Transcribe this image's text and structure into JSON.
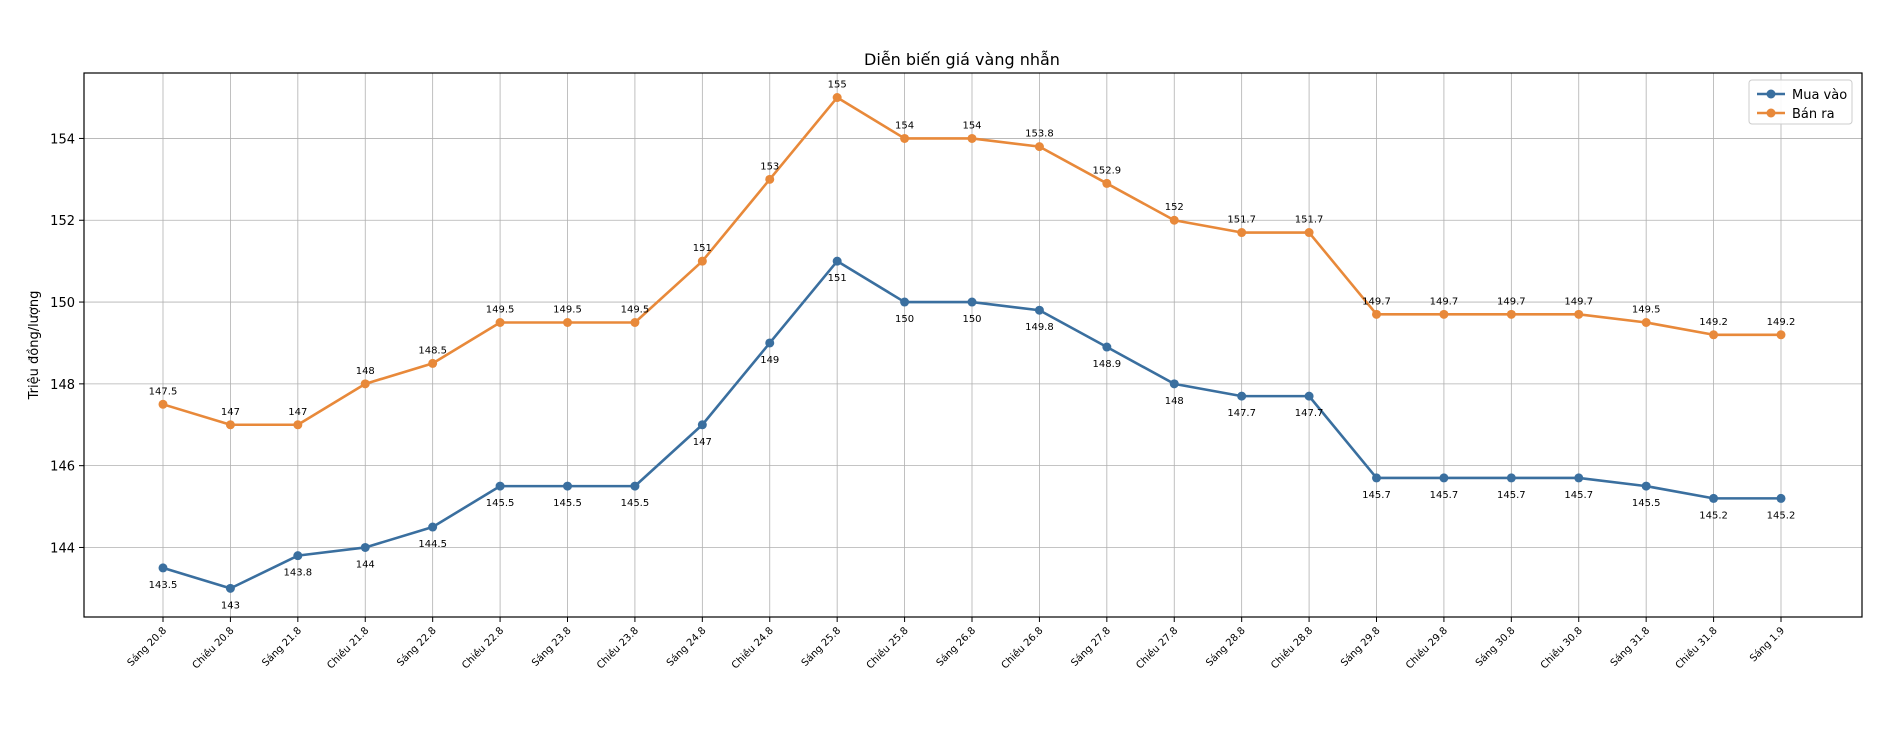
{
  "chart_data": {
    "type": "line",
    "title": "Diễn biến giá vàng nhẫn",
    "xlabel": "",
    "ylabel": "Triệu đồng/lượng",
    "ylim": [
      142.3,
      155.6
    ],
    "yticks": [
      144,
      146,
      148,
      150,
      152,
      154
    ],
    "grid": true,
    "legend_position": "top-right",
    "categories": [
      "Sáng 20.8",
      "Chiều 20.8",
      "Sáng 21.8",
      "Chiều 21.8",
      "Sáng 22.8",
      "Chiều 22.8",
      "Sáng 23.8",
      "Chiều 23.8",
      "Sáng 24.8",
      "Chiều 24.8",
      "Sáng 25.8",
      "Chiều 25.8",
      "Sáng 26.8",
      "Chiều 26.8",
      "Sáng 27.8",
      "Chiều 27.8",
      "Sáng 28.8",
      "Chiều 28.8",
      "Sáng 29.8",
      "Chiều 29.8",
      "Sáng 30.8",
      "Chiều 30.8",
      "Sáng 31.8",
      "Chiều 31.8",
      "Sáng 1.9"
    ],
    "series": [
      {
        "name": "Mua vào",
        "color": "#3a6f9f",
        "label_position": "below",
        "values": [
          143.5,
          143,
          143.8,
          144,
          144.5,
          145.5,
          145.5,
          145.5,
          147,
          149,
          151,
          150,
          150,
          149.8,
          148.9,
          148,
          147.7,
          147.7,
          145.7,
          145.7,
          145.7,
          145.7,
          145.5,
          145.2,
          145.2
        ],
        "labels": [
          "143.5",
          "143",
          "143.8",
          "144",
          "144.5",
          "145.5",
          "145.5",
          "145.5",
          "147",
          "149",
          "151",
          "150",
          "150",
          "149.8",
          "148.9",
          "148",
          "147.7",
          "147.7",
          "145.7",
          "145.7",
          "145.7",
          "145.7",
          "145.5",
          "145.2",
          "145.2"
        ]
      },
      {
        "name": "Bán ra",
        "color": "#e8893a",
        "label_position": "above",
        "values": [
          147.5,
          147,
          147,
          148,
          148.5,
          149.5,
          149.5,
          149.5,
          151,
          153,
          155,
          154,
          154,
          153.8,
          152.9,
          152,
          151.7,
          151.7,
          149.7,
          149.7,
          149.7,
          149.7,
          149.5,
          149.2,
          149.2
        ],
        "labels": [
          "147.5",
          "147",
          "147",
          "148",
          "148.5",
          "149.5",
          "149.5",
          "149.5",
          "151",
          "153",
          "155",
          "154",
          "154",
          "153.8",
          "152.9",
          "152",
          "151.7",
          "151.7",
          "149.7",
          "149.7",
          "149.7",
          "149.7",
          "149.5",
          "149.2",
          "149.2"
        ]
      }
    ]
  }
}
